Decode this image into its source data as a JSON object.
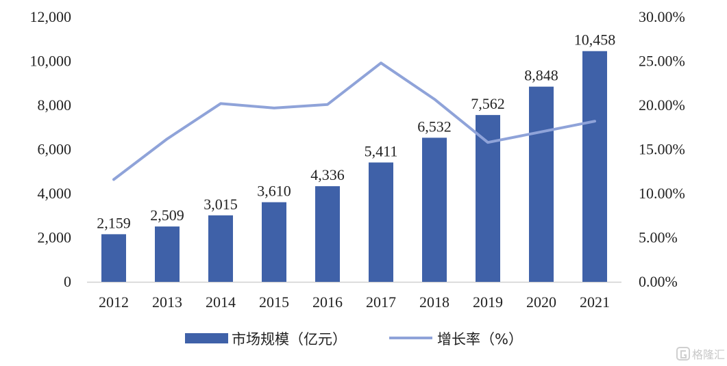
{
  "chart_data": {
    "type": "bar",
    "categories": [
      "2012",
      "2013",
      "2014",
      "2015",
      "2016",
      "2017",
      "2018",
      "2019",
      "2020",
      "2021"
    ],
    "series": [
      {
        "name": "市场规模（亿元）",
        "type": "bar",
        "axis": "left",
        "values": [
          2159,
          2509,
          3015,
          3610,
          4336,
          5411,
          6532,
          7562,
          8848,
          10458
        ],
        "labels": [
          "2,159",
          "2,509",
          "3,015",
          "3,610",
          "4,336",
          "5,411",
          "6,532",
          "7,562",
          "8,848",
          "10,458"
        ],
        "color": "#3f61a8"
      },
      {
        "name": "增长率（%）",
        "type": "line",
        "axis": "right",
        "values": [
          11.6,
          16.2,
          20.2,
          19.7,
          20.1,
          24.8,
          20.7,
          15.8,
          17.0,
          18.2
        ],
        "color": "#8fa3d9"
      }
    ],
    "y_left": {
      "ylim": [
        0,
        12000
      ],
      "ticks": [
        0,
        2000,
        4000,
        6000,
        8000,
        10000,
        12000
      ],
      "tick_labels": [
        "0",
        "2,000",
        "4,000",
        "6,000",
        "8,000",
        "10,000",
        "12,000"
      ]
    },
    "y_right": {
      "ylim": [
        0,
        30
      ],
      "ticks": [
        0,
        5,
        10,
        15,
        20,
        25,
        30
      ],
      "tick_labels": [
        "0.00%",
        "5.00%",
        "10.00%",
        "15.00%",
        "20.00%",
        "25.00%",
        "30.00%"
      ]
    },
    "grid": false,
    "legend_position": "bottom"
  },
  "watermark": {
    "text": "格隆汇",
    "icon": "g-logo-icon"
  }
}
